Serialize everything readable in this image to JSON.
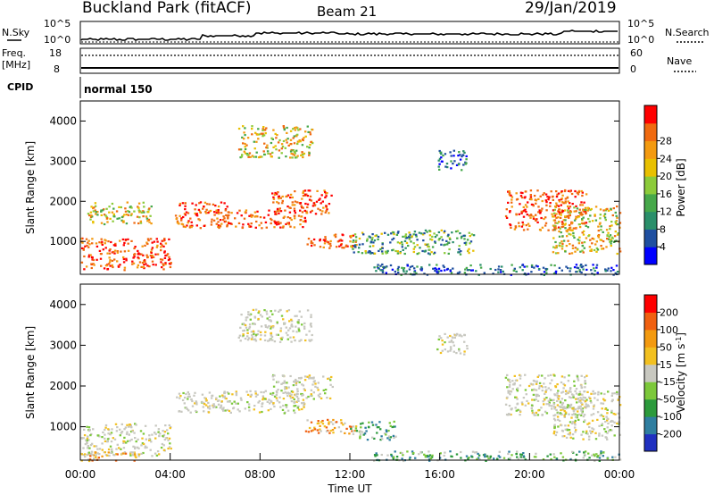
{
  "header": {
    "station": "Buckland Park (fitACF)",
    "beam": "Beam 21",
    "date": "29/Jan/2019"
  },
  "status_panel": {
    "nsky_label": "N.Sky",
    "nsky_tick_top": "10^5",
    "nsky_tick_bottom": "10^0",
    "nsearch_label": "N.Search",
    "nsearch_tick_top": "10^5",
    "nsearch_tick_bottom": "10^0",
    "freq_label": "Freq.",
    "freq_unit": "[MHz]",
    "freq_tick_top": "18",
    "freq_tick_bottom": "8",
    "nave_label": "Nave",
    "nave_tick_top": "60",
    "nave_tick_bottom": "0",
    "cpid_label": "CPID",
    "cpid_value": "normal 150"
  },
  "chart_data": [
    {
      "type": "heatmap",
      "name": "power",
      "ylabel": "Slant Range [km]",
      "ylim": [
        180,
        4500
      ],
      "yticks": [
        "1000",
        "2000",
        "3000",
        "4000"
      ],
      "xlim": [
        0,
        24
      ],
      "colorbar": {
        "label": "Power [dB]",
        "ticks": [
          "4",
          "8",
          "12",
          "16",
          "20",
          "24",
          "28"
        ],
        "colors": [
          "#0000ff",
          "#1f4fa0",
          "#2a8f6a",
          "#46a84a",
          "#8ccb3a",
          "#e8c000",
          "#f39a10",
          "#f06a10",
          "#ff0000"
        ]
      },
      "regions": [
        {
          "x0": 0.0,
          "x1": 4.0,
          "y0": 300,
          "y1": 1100,
          "level": "high"
        },
        {
          "x0": 0.3,
          "x1": 3.2,
          "y0": 1450,
          "y1": 2000,
          "level": "mid"
        },
        {
          "x0": 4.2,
          "x1": 6.5,
          "y0": 1350,
          "y1": 2000,
          "level": "high"
        },
        {
          "x0": 6.0,
          "x1": 10.0,
          "y0": 1350,
          "y1": 1800,
          "level": "high"
        },
        {
          "x0": 8.5,
          "x1": 11.2,
          "y0": 1700,
          "y1": 2300,
          "level": "high"
        },
        {
          "x0": 7.0,
          "x1": 10.3,
          "y0": 3100,
          "y1": 3900,
          "level": "mid"
        },
        {
          "x0": 10.0,
          "x1": 12.3,
          "y0": 850,
          "y1": 1200,
          "level": "high"
        },
        {
          "x0": 12.0,
          "x1": 17.5,
          "y0": 700,
          "y1": 1300,
          "level": "low"
        },
        {
          "x0": 15.8,
          "x1": 17.2,
          "y0": 2800,
          "y1": 3300,
          "level": "weak"
        },
        {
          "x0": 18.9,
          "x1": 22.5,
          "y0": 1300,
          "y1": 2300,
          "level": "high"
        },
        {
          "x0": 21.0,
          "x1": 24.0,
          "y0": 700,
          "y1": 1900,
          "level": "mid"
        },
        {
          "x0": 13.0,
          "x1": 24.0,
          "y0": 180,
          "y1": 450,
          "level": "weak"
        }
      ]
    },
    {
      "type": "heatmap",
      "name": "velocity",
      "ylabel": "Slant Range [km]",
      "xlabel": "Time UT",
      "ylim": [
        180,
        4500
      ],
      "yticks": [
        "1000",
        "2000",
        "3000",
        "4000"
      ],
      "xlim": [
        0,
        24
      ],
      "xticks": [
        "00:00",
        "04:00",
        "08:00",
        "12:00",
        "16:00",
        "20:00",
        "00:00"
      ],
      "colorbar": {
        "label": "Velocity [m s^-1]",
        "ticks": [
          "200",
          "100",
          "50",
          "15",
          "-15",
          "-50",
          "-100",
          "-200"
        ],
        "colors": [
          "#2030c0",
          "#2f7ea0",
          "#2c9a3c",
          "#7cc83a",
          "#c8c8c0",
          "#f2c020",
          "#f39a10",
          "#f06010",
          "#ff0000"
        ]
      },
      "regions": [
        {
          "x0": 0.0,
          "x1": 4.0,
          "y0": 300,
          "y1": 1100,
          "level": "grey"
        },
        {
          "x0": 0.0,
          "x1": 2.5,
          "y0": 180,
          "y1": 400,
          "level": "orange"
        },
        {
          "x0": 4.2,
          "x1": 10.0,
          "y0": 1350,
          "y1": 1900,
          "level": "grey"
        },
        {
          "x0": 8.5,
          "x1": 11.2,
          "y0": 1700,
          "y1": 2300,
          "level": "grey"
        },
        {
          "x0": 7.0,
          "x1": 10.3,
          "y0": 3100,
          "y1": 3900,
          "level": "grey"
        },
        {
          "x0": 10.0,
          "x1": 12.3,
          "y0": 850,
          "y1": 1200,
          "level": "orange"
        },
        {
          "x0": 12.0,
          "x1": 14.0,
          "y0": 700,
          "y1": 1150,
          "level": "green"
        },
        {
          "x0": 15.8,
          "x1": 17.2,
          "y0": 2800,
          "y1": 3300,
          "level": "grey"
        },
        {
          "x0": 18.9,
          "x1": 22.5,
          "y0": 1300,
          "y1": 2300,
          "level": "grey"
        },
        {
          "x0": 21.0,
          "x1": 24.0,
          "y0": 700,
          "y1": 1900,
          "level": "grey"
        },
        {
          "x0": 13.0,
          "x1": 24.0,
          "y0": 180,
          "y1": 420,
          "level": "green"
        }
      ]
    }
  ]
}
